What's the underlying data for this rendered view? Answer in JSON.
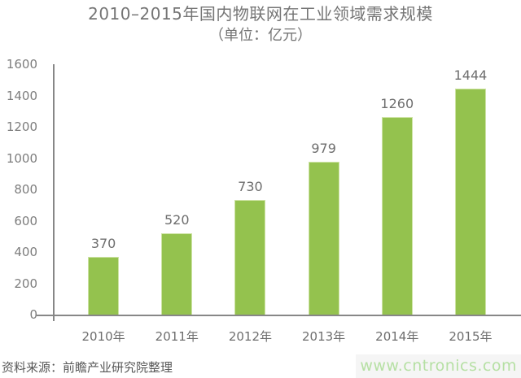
{
  "title": {
    "line1": "2010–2015年国内物联网在工业领域需求规模",
    "line2": "（单位：亿元）"
  },
  "chart_data": {
    "type": "bar",
    "title": "2010–2015年国内物联网在工业领域需求规模",
    "subtitle": "（单位：亿元）",
    "unit": "亿元",
    "categories": [
      "2010年",
      "2011年",
      "2012年",
      "2013年",
      "2014年",
      "2015年"
    ],
    "values": [
      370,
      520,
      730,
      979,
      1260,
      1444
    ],
    "yticks": [
      0,
      200,
      400,
      600,
      800,
      1000,
      1200,
      1400,
      1600
    ],
    "ylim": [
      0,
      1600
    ],
    "xlabel": "",
    "ylabel": "",
    "grid": false,
    "legend": false,
    "data_labels": true
  },
  "footer": {
    "source": "资料来源：前瞻产业研究院整理",
    "watermark": "www.cntronics.com"
  },
  "colors": {
    "bar": "#94c24e",
    "bar_border": "#cde3a4",
    "axis": "#878787",
    "title_text": "#757575",
    "tick_text": "#7d7d7d",
    "value_text": "#6e6e6e",
    "source_text": "#585858",
    "watermark_text": "#b6e0a4",
    "watermark_bg": "#f5f5f5"
  }
}
